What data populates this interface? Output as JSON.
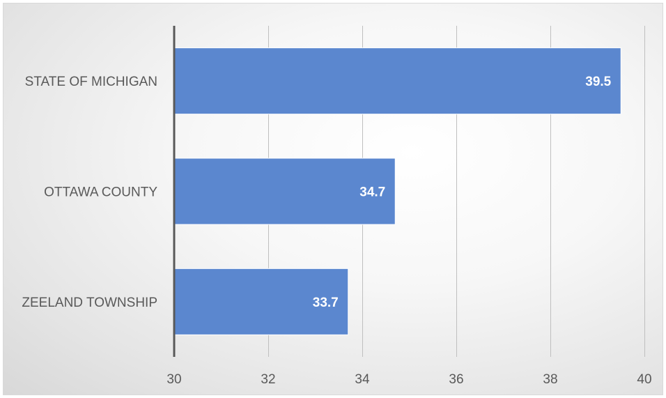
{
  "colors": {
    "bar": "#5b87cf",
    "axis": "#595959",
    "grid": "#bfbfbf",
    "label": "#595959",
    "data_label": "#ffffff"
  },
  "chart_data": {
    "type": "bar",
    "orientation": "horizontal",
    "title": "",
    "xlabel": "",
    "ylabel": "",
    "categories": [
      "STATE OF MICHIGAN",
      "OTTAWA COUNTY",
      "ZEELAND TOWNSHIP"
    ],
    "values": [
      39.5,
      34.7,
      33.7
    ],
    "data_labels": [
      "39.5",
      "34.7",
      "33.7"
    ],
    "xlim": [
      30,
      40
    ],
    "xticks": [
      30,
      32,
      34,
      36,
      38,
      40
    ],
    "xtick_labels": [
      "30",
      "32",
      "34",
      "36",
      "38",
      "40"
    ],
    "grid": "vertical",
    "legend": "none"
  }
}
